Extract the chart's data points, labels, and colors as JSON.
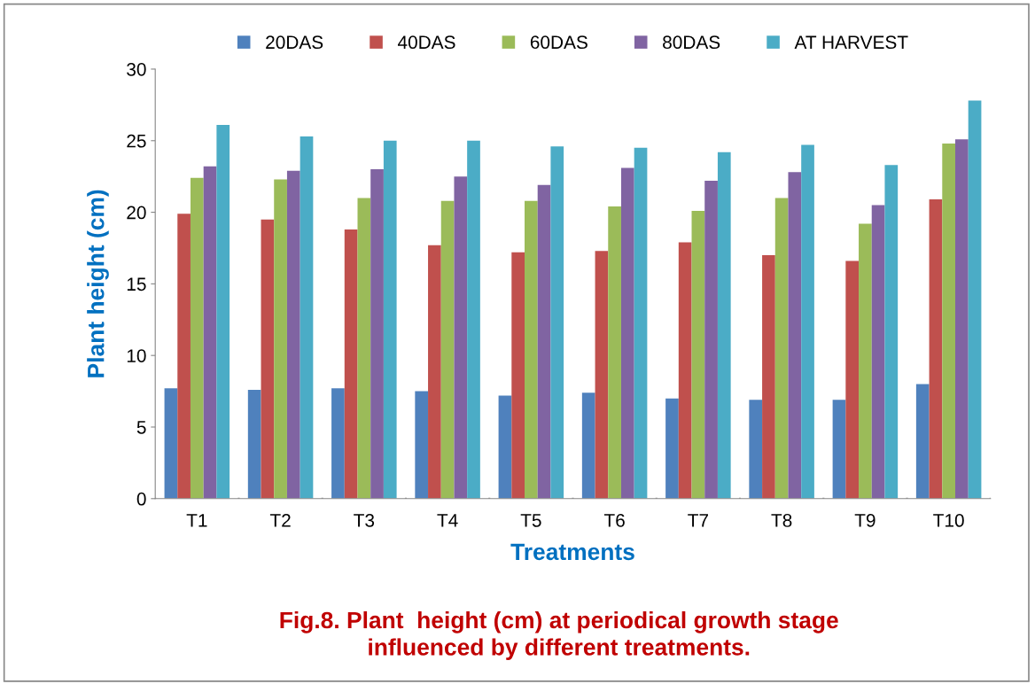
{
  "chart_data": {
    "type": "bar",
    "title": "Fig.8. Plant  height (cm) at periodical growth stage\ninfluenced by different treatments.",
    "xlabel": "Treatments",
    "ylabel": "Plant height (cm)",
    "categories": [
      "T1",
      "T2",
      "T3",
      "T4",
      "T5",
      "T6",
      "T7",
      "T8",
      "T9",
      "T10"
    ],
    "series": [
      {
        "name": "20DAS",
        "color": "#4f81bd",
        "values": [
          7.7,
          7.6,
          7.7,
          7.5,
          7.2,
          7.4,
          7.0,
          6.9,
          6.9,
          8.0
        ]
      },
      {
        "name": "40DAS",
        "color": "#c0504d",
        "values": [
          19.9,
          19.5,
          18.8,
          17.7,
          17.2,
          17.3,
          17.9,
          17.0,
          16.6,
          20.9
        ]
      },
      {
        "name": "60DAS",
        "color": "#9bbb59",
        "values": [
          22.4,
          22.3,
          21.0,
          20.8,
          20.8,
          20.4,
          20.1,
          21.0,
          19.2,
          24.8
        ]
      },
      {
        "name": "80DAS",
        "color": "#8064a2",
        "values": [
          23.2,
          22.9,
          23.0,
          22.5,
          21.9,
          23.1,
          22.2,
          22.8,
          20.5,
          25.1
        ]
      },
      {
        "name": "AT HARVEST",
        "color": "#4bacc6",
        "values": [
          26.1,
          25.3,
          25.0,
          25.0,
          24.6,
          24.5,
          24.2,
          24.7,
          23.3,
          27.8
        ]
      }
    ],
    "ylim": [
      0,
      30
    ],
    "yticks": [
      0,
      5,
      10,
      15,
      20,
      25,
      30
    ],
    "grid": false,
    "legend": "top"
  }
}
